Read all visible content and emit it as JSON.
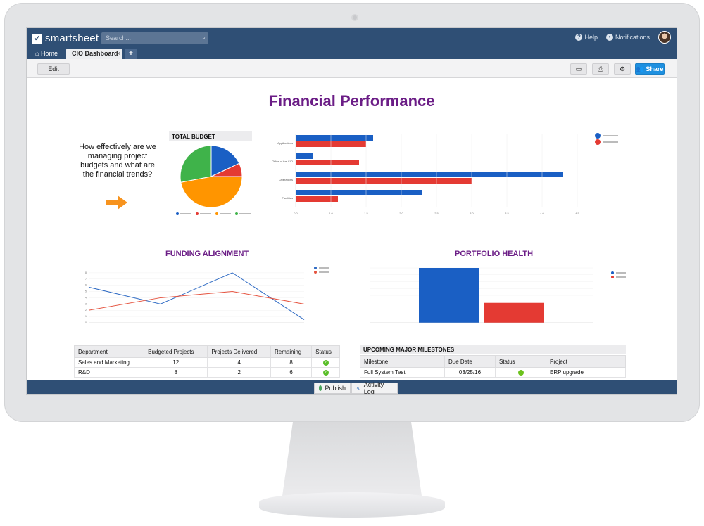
{
  "app": {
    "logo_text": "smartsheet",
    "search_placeholder": "Search...",
    "help_label": "Help",
    "notifications_label": "Notifications"
  },
  "tabs": {
    "home_label": "Home",
    "active_label": "CIO Dashboard",
    "close_glyph": "×",
    "add_glyph": "+"
  },
  "toolbar": {
    "edit_label": "Edit",
    "share_label": "Share"
  },
  "dashboard": {
    "title": "Financial Performance",
    "question": "How effectively are we managing project budgets and what are the financial trends?",
    "pie_title": "TOTAL BUDGET",
    "funding_title": "FUNDING ALIGNMENT",
    "portfolio_title": "PORTFOLIO HEALTH",
    "milestones_title": "UPCOMING MAJOR MILESTONES"
  },
  "departments_table": {
    "headers": [
      "Department",
      "Budgeted Projects",
      "Projects Delivered",
      "Remaining",
      "Status"
    ],
    "rows": [
      {
        "department": "Sales and Marketing",
        "budgeted": "12",
        "delivered": "4",
        "remaining": "8",
        "status": "green"
      },
      {
        "department": "R&D",
        "budgeted": "8",
        "delivered": "2",
        "remaining": "6",
        "status": "green"
      }
    ]
  },
  "milestones_table": {
    "headers": [
      "Milestone",
      "Due Date",
      "Status",
      "Project"
    ],
    "rows": [
      {
        "milestone": "Full System Test",
        "due": "03/25/16",
        "status": "green",
        "project": "ERP upgrade"
      }
    ]
  },
  "bottombar": {
    "publish_label": "Publish",
    "activity_label": "Activity Log"
  },
  "colors": {
    "brand_navy": "#2f4f75",
    "title_purple": "#6b1d86",
    "blue": "#1a5fc4",
    "red": "#e43a33",
    "orange": "#ff9500",
    "green": "#3fb34a",
    "status_green": "#5bbf2a",
    "share_blue": "#1e90e0"
  },
  "chart_data": [
    {
      "type": "pie",
      "title": "TOTAL BUDGET",
      "values": [
        18,
        7,
        47,
        28
      ],
      "colors": [
        "#1a5fc4",
        "#e43a33",
        "#ff9500",
        "#3fb34a"
      ]
    },
    {
      "type": "bar",
      "orientation": "horizontal",
      "categories": [
        "Applications",
        "Office of the CIO",
        "Operations",
        "Facilities"
      ],
      "series": [
        {
          "color": "#1a5fc4",
          "values": [
            1.1,
            0.25,
            3.8,
            1.8
          ]
        },
        {
          "color": "#e43a33",
          "values": [
            1.0,
            0.9,
            2.5,
            0.6
          ]
        }
      ],
      "xticks": [
        "0.0",
        "1.0",
        "1.5",
        "2.0",
        "2.5",
        "3.0",
        "3.5",
        "4.0",
        "4.5"
      ],
      "xlim": [
        0,
        4
      ]
    },
    {
      "type": "line",
      "title": "FUNDING ALIGNMENT",
      "x": [
        0,
        1,
        2,
        3
      ],
      "series": [
        {
          "color": "#2f6bc4",
          "values": [
            5.7,
            3.0,
            8.0,
            0.5
          ]
        },
        {
          "color": "#e5533f",
          "values": [
            2.0,
            4.0,
            5.0,
            3.0
          ]
        }
      ],
      "ylim": [
        0,
        9
      ]
    },
    {
      "type": "bar",
      "title": "PORTFOLIO HEALTH",
      "categories": [
        ""
      ],
      "series": [
        {
          "color": "#1a5fc4",
          "values": [
            80
          ]
        },
        {
          "color": "#e43a33",
          "values": [
            29
          ]
        }
      ],
      "ylim": [
        0,
        80
      ]
    }
  ]
}
